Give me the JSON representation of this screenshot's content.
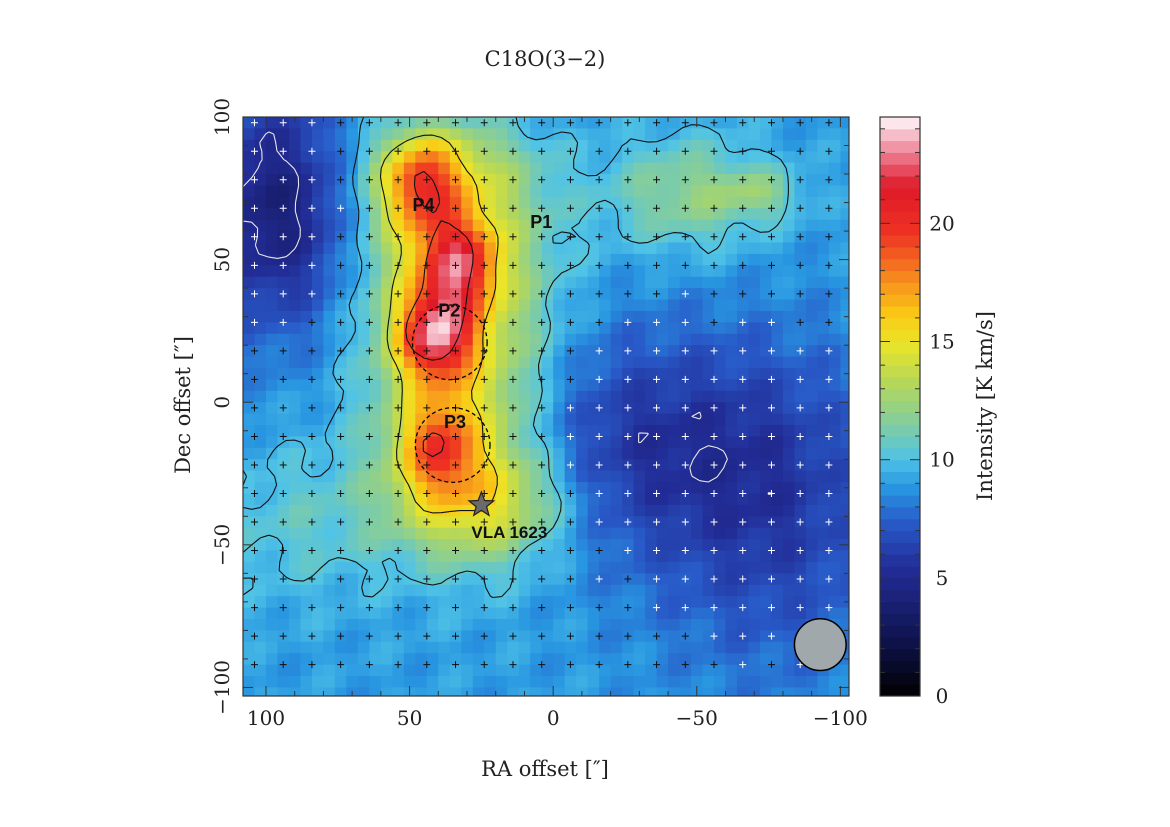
{
  "chart_data": {
    "type": "heatmap",
    "title": "C18O(3−2)",
    "xlabel": "RA offset  [″]",
    "ylabel": "Dec offset  [″]",
    "xlim": [
      108,
      -103
    ],
    "ylim": [
      -103,
      100
    ],
    "x_ticks": [
      {
        "value": 100,
        "label": "100"
      },
      {
        "value": 50,
        "label": "50"
      },
      {
        "value": 0,
        "label": "0"
      },
      {
        "value": -50,
        "label": "−50"
      },
      {
        "value": -100,
        "label": "−100"
      }
    ],
    "y_ticks": [
      {
        "value": 100,
        "label": "100"
      },
      {
        "value": 50,
        "label": "50"
      },
      {
        "value": 0,
        "label": "0"
      },
      {
        "value": -50,
        "label": "−50"
      },
      {
        "value": -100,
        "label": "−100"
      }
    ],
    "colorbar": {
      "label": "Intensity [K km/s]",
      "range": [
        0,
        24.5
      ],
      "ticks": [
        {
          "value": 0,
          "label": "0"
        },
        {
          "value": 5,
          "label": "5"
        },
        {
          "value": 10,
          "label": "10"
        },
        {
          "value": 15,
          "label": "15"
        },
        {
          "value": 20,
          "label": "20"
        }
      ]
    },
    "peaks": [
      {
        "label": "P4",
        "ra": 48,
        "dec": 78,
        "value": 21
      },
      {
        "label": "P1",
        "ra": 35,
        "dec": 50,
        "value": 22
      },
      {
        "label": "P2",
        "ra": 43,
        "dec": 25,
        "value": 24
      },
      {
        "label": "P3",
        "ra": 42,
        "dec": -14,
        "value": 21
      }
    ],
    "source": {
      "label": "VLA 1623",
      "ra": 25,
      "dec": -36,
      "marker": "star"
    },
    "circles": [
      {
        "ra": 36,
        "dec": 21,
        "radius": 13,
        "style": "dashed"
      },
      {
        "ra": 35,
        "dec": -15,
        "radius": 13,
        "style": "dashed"
      }
    ],
    "beam": {
      "ra": -93,
      "dec": -85,
      "radius": 9
    },
    "contour_levels": [
      5,
      10,
      15,
      20
    ],
    "grid_marker": "+"
  }
}
